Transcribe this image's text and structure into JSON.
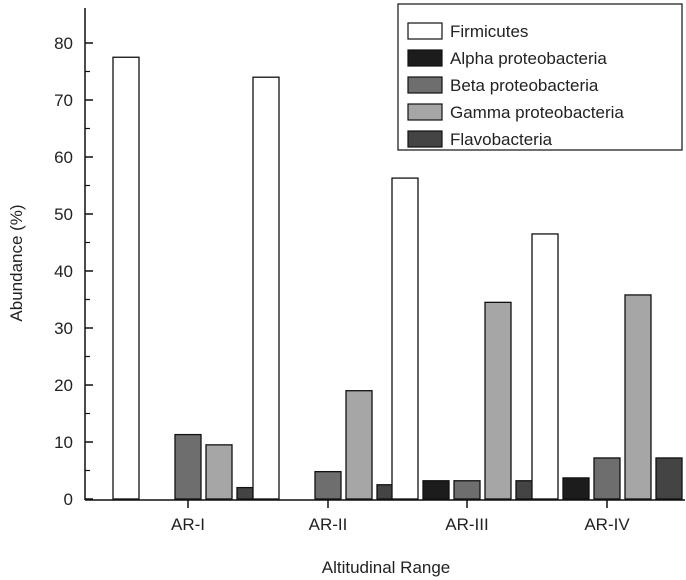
{
  "chart_data": {
    "type": "bar",
    "categories": [
      "AR-I",
      "AR-II",
      "AR-III",
      "AR-IV"
    ],
    "series": [
      {
        "name": "Firmicutes",
        "color": "#ffffff",
        "values": [
          77.5,
          74,
          56.3,
          46.5
        ]
      },
      {
        "name": "Alpha proteobacteria",
        "color": "#1c1c1c",
        "values": [
          0,
          0,
          3.2,
          3.7
        ]
      },
      {
        "name": "Beta proteobacteria",
        "color": "#6e6e6e",
        "values": [
          11.3,
          4.8,
          3.2,
          7.2
        ]
      },
      {
        "name": "Gamma proteobacteria",
        "color": "#a6a6a6",
        "values": [
          9.5,
          19,
          34.5,
          35.8
        ]
      },
      {
        "name": "Flavobacteria",
        "color": "#444444",
        "values": [
          2,
          2.5,
          3.2,
          7.2
        ]
      }
    ],
    "xlabel": "Altitudinal Range",
    "ylabel": "Abundance (%)",
    "ylim": [
      0,
      84
    ],
    "yticks": [
      0,
      10,
      20,
      30,
      40,
      50,
      60,
      70,
      80
    ],
    "legend_position": "top-right",
    "grid": false
  }
}
